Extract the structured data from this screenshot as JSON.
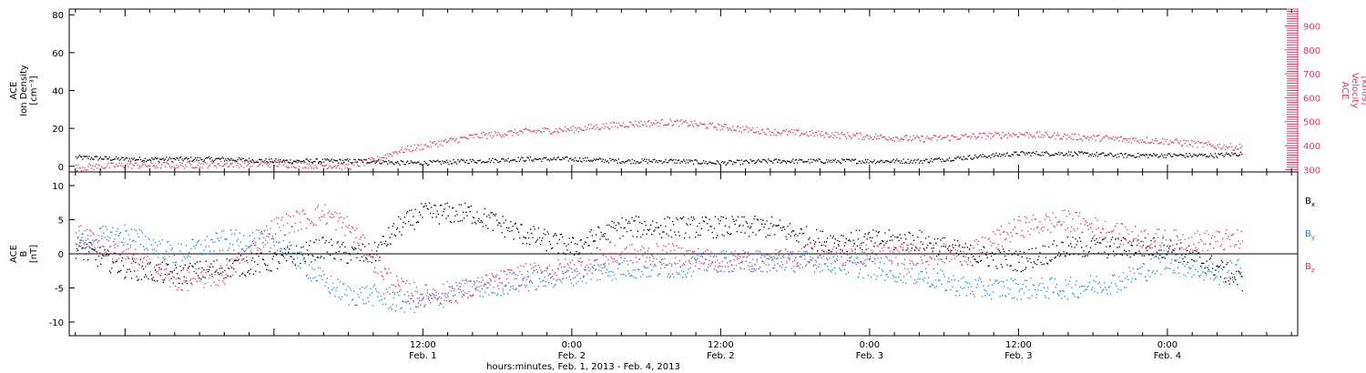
{
  "chart_data": [
    {
      "type": "scatter",
      "panel": "top",
      "ylabel_left": [
        "ACE",
        "Ion Density",
        "[cm⁻³]"
      ],
      "ylabel_right": [
        "ACE",
        "Velocity",
        "[km/s]"
      ],
      "ylim_left": [
        -3,
        83
      ],
      "yticks_left": [
        0,
        20,
        40,
        60,
        80
      ],
      "ylim_right": [
        290,
        970
      ],
      "yticks_right": [
        300,
        400,
        500,
        600,
        700,
        800,
        900
      ],
      "xlim_hours": [
        -16.5,
        82.5
      ],
      "grid": false,
      "series": [
        {
          "name": "Ion Density",
          "axis": "left",
          "color": "#000000",
          "x_hours": [
            -16,
            -12,
            -8,
            -4,
            0,
            4,
            6,
            8,
            10,
            12,
            16,
            20,
            24,
            28,
            32,
            36,
            40,
            44,
            48,
            52,
            56,
            60,
            64,
            68,
            72,
            76,
            78
          ],
          "y": [
            5,
            4,
            4,
            4,
            3,
            3,
            3,
            3,
            2,
            2,
            3,
            4,
            4,
            3,
            3,
            2,
            3,
            3,
            3,
            3,
            5,
            7,
            7,
            6,
            6,
            6,
            7
          ]
        },
        {
          "name": "Velocity",
          "axis": "right",
          "color": "#e8375f",
          "x_hours": [
            -16,
            -12,
            -8,
            -4,
            0,
            4,
            6,
            8,
            10,
            12,
            16,
            20,
            24,
            28,
            32,
            36,
            40,
            44,
            48,
            52,
            56,
            60,
            64,
            68,
            72,
            76,
            78
          ],
          "y": [
            310,
            320,
            320,
            325,
            325,
            320,
            315,
            340,
            380,
            400,
            440,
            460,
            470,
            490,
            500,
            480,
            460,
            450,
            440,
            430,
            440,
            450,
            440,
            430,
            420,
            400,
            395
          ]
        }
      ]
    },
    {
      "type": "scatter",
      "panel": "bottom",
      "ylabel": [
        "ACE",
        "B",
        "[nT]"
      ],
      "ylim": [
        -12,
        12
      ],
      "yticks": [
        -10,
        -5,
        0,
        5,
        10
      ],
      "zero_line": true,
      "xlim_hours": [
        -16.5,
        82.5
      ],
      "xticks": [
        {
          "hours": 12,
          "label": "12:00",
          "date": "Feb. 1"
        },
        {
          "hours": 24,
          "label": "0:00",
          "date": "Feb. 2"
        },
        {
          "hours": 36,
          "label": "12:00",
          "date": "Feb. 2"
        },
        {
          "hours": 48,
          "label": "0:00",
          "date": "Feb. 3"
        },
        {
          "hours": 60,
          "label": "12:00",
          "date": "Feb. 3"
        },
        {
          "hours": 72,
          "label": "0:00",
          "date": "Feb. 4"
        }
      ],
      "xlabel": "hours:minutes, Feb.  1, 2013 - Feb.  4, 2013",
      "grid": false,
      "series": [
        {
          "name": "Bx",
          "legend": {
            "main": "B",
            "sub": "x"
          },
          "color": "#000000",
          "x_hours": [
            -16,
            -12,
            -8,
            -4,
            0,
            4,
            6,
            8,
            10,
            12,
            16,
            20,
            24,
            28,
            32,
            36,
            40,
            44,
            48,
            52,
            56,
            60,
            64,
            68,
            72,
            76,
            78
          ],
          "y": [
            1,
            -2,
            -3,
            -2,
            -1,
            1,
            0,
            0,
            4,
            6,
            6,
            3,
            1,
            4,
            4,
            4,
            4,
            2,
            2,
            2,
            0,
            -1,
            1,
            1,
            1,
            -2,
            -4
          ]
        },
        {
          "name": "By",
          "legend": {
            "main": "B",
            "sub": "y"
          },
          "color": "#1e88e5",
          "x_hours": [
            -16,
            -12,
            -8,
            -4,
            0,
            4,
            6,
            8,
            10,
            12,
            16,
            20,
            24,
            28,
            32,
            36,
            40,
            44,
            48,
            52,
            56,
            60,
            64,
            68,
            72,
            76,
            78
          ],
          "y": [
            2,
            3,
            0,
            2,
            2,
            -4,
            -6,
            -6,
            -7,
            -7,
            -5,
            -4,
            -3,
            -2,
            -2,
            -1,
            -1,
            -1,
            -2,
            -3,
            -5,
            -5,
            -5,
            -4,
            -1,
            -3,
            -2
          ]
        },
        {
          "name": "Bz",
          "legend": {
            "main": "B",
            "sub": "z"
          },
          "color": "#e8375f",
          "x_hours": [
            -16,
            -12,
            -8,
            -4,
            0,
            4,
            6,
            8,
            10,
            12,
            16,
            20,
            24,
            28,
            32,
            36,
            40,
            44,
            48,
            52,
            56,
            60,
            64,
            68,
            72,
            76,
            78
          ],
          "y": [
            3,
            0,
            -4,
            -3,
            4,
            6,
            4,
            -1,
            -5,
            -6,
            -5,
            -3,
            -2,
            0,
            0,
            -1,
            -1,
            0,
            0,
            0,
            0,
            4,
            5,
            3,
            2,
            2,
            2
          ]
        }
      ]
    }
  ]
}
